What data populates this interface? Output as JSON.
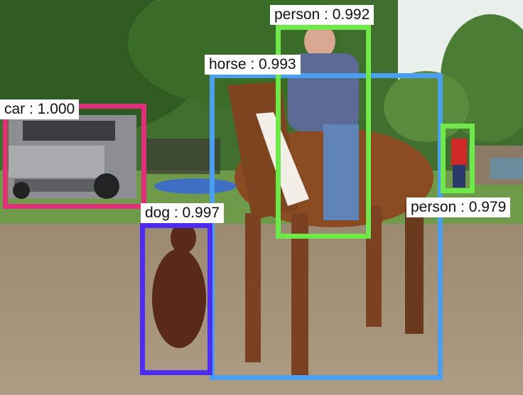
{
  "detections": [
    {
      "label": "car : 1.000",
      "color": "#e0307a"
    },
    {
      "label": "horse : 0.993",
      "color": "#4a9ff0"
    },
    {
      "label": "person : 0.992",
      "color": "#6fe84a"
    },
    {
      "label": "dog : 0.997",
      "color": "#4e2cf0"
    },
    {
      "label": "person : 0.979",
      "color": "#6fe84a"
    }
  ]
}
